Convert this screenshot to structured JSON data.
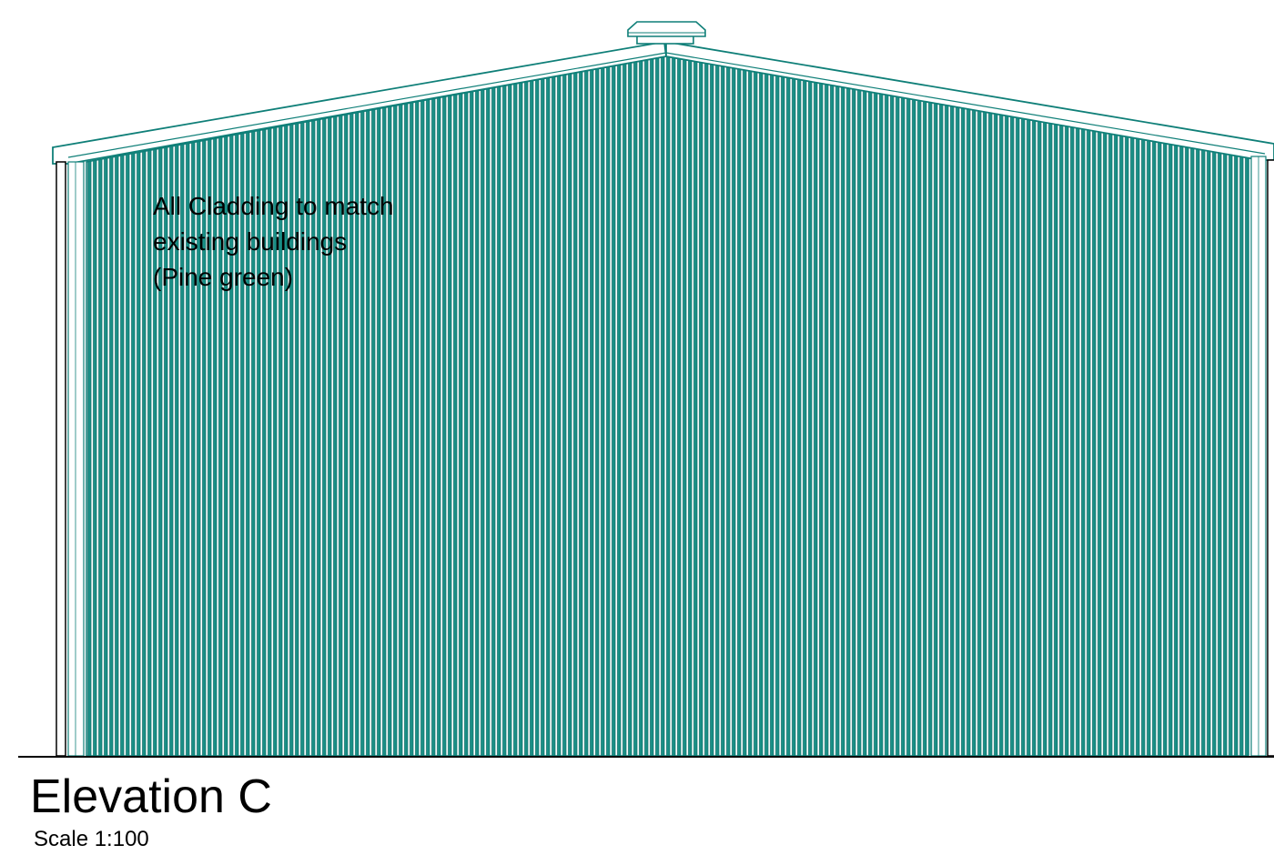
{
  "drawing": {
    "title": "Elevation C",
    "scale": "Scale 1:100",
    "annotation": {
      "lines": [
        "All Cladding to match",
        "existing buildings",
        "(Pine green)"
      ]
    }
  },
  "colors": {
    "cladding_stroke": "#0f7f78",
    "cladding_fill": "#2a9d94",
    "outline": "#000000",
    "background": "#ffffff"
  },
  "icons": {
    "roof_vent": "roof-vent-icon"
  }
}
